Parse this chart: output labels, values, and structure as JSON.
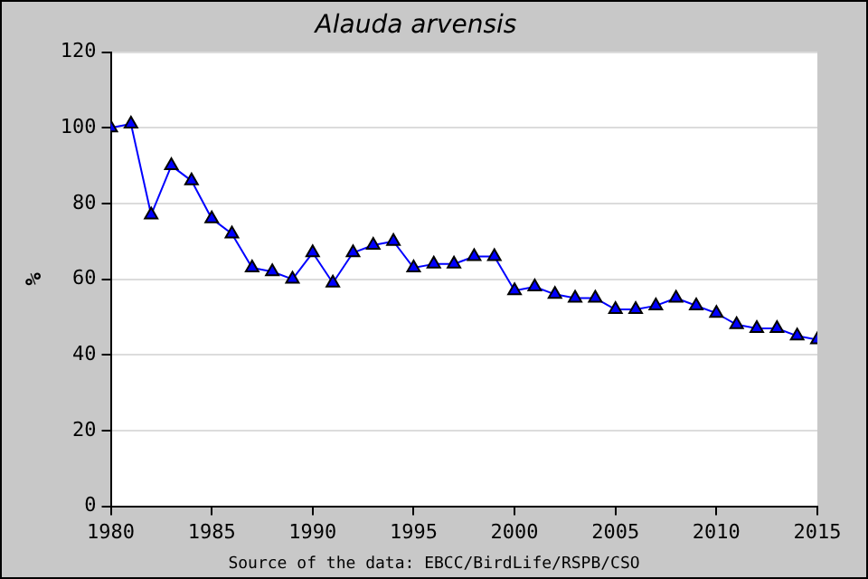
{
  "chart_data": {
    "type": "line",
    "title": "Alauda arvensis",
    "ylabel": "%",
    "x": [
      1980,
      1981,
      1982,
      1983,
      1984,
      1985,
      1986,
      1987,
      1988,
      1989,
      1990,
      1991,
      1992,
      1993,
      1994,
      1995,
      1996,
      1997,
      1998,
      1999,
      2000,
      2001,
      2002,
      2003,
      2004,
      2005,
      2006,
      2007,
      2008,
      2009,
      2010,
      2011,
      2012,
      2013,
      2014,
      2015
    ],
    "series": [
      {
        "color": "#0000ff",
        "values": [
          100,
          101,
          77,
          90,
          86,
          76,
          72,
          63,
          62,
          60,
          67,
          59,
          67,
          69,
          70,
          63,
          64,
          64,
          66,
          66,
          57,
          58,
          56,
          55,
          55,
          52,
          52,
          53,
          55,
          53,
          51,
          48,
          47,
          47,
          45,
          44
        ]
      }
    ],
    "xlim": [
      1980,
      2015
    ],
    "xticks": [
      1980,
      1985,
      1990,
      1995,
      2000,
      2005,
      2010,
      2015
    ],
    "ylim": [
      0,
      120
    ],
    "yticks": [
      0,
      20,
      40,
      60,
      80,
      100,
      120
    ],
    "grid": "y",
    "legend": false,
    "marker": "triangle",
    "line_style": "solid",
    "annotations": [
      "Source of the data: EBCC/BirdLife/RSPB/CSO"
    ]
  }
}
